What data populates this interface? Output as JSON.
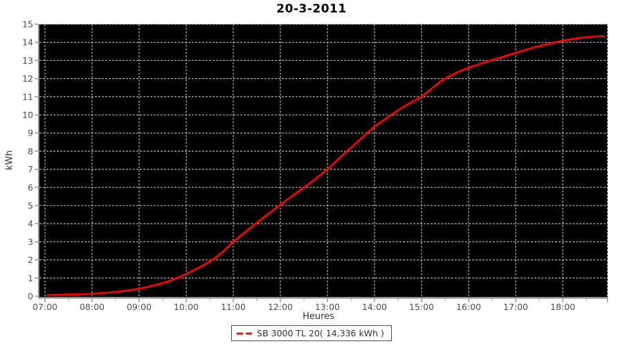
{
  "chart_data": {
    "type": "line",
    "title": "20-3-2011",
    "xlabel": "Heures",
    "ylabel": "kWh",
    "x_tick_labels": [
      "07:00",
      "08:00",
      "09:00",
      "10:00",
      "11:00",
      "12:00",
      "13:00",
      "14:00",
      "15:00",
      "16:00",
      "17:00",
      "18:00"
    ],
    "x_tick_hours": [
      7,
      8,
      9,
      10,
      11,
      12,
      13,
      14,
      15,
      16,
      17,
      18
    ],
    "x_range_hours": [
      6.88,
      18.95
    ],
    "y_ticks": [
      0,
      1,
      2,
      3,
      4,
      5,
      6,
      7,
      8,
      9,
      10,
      11,
      12,
      13,
      14,
      15
    ],
    "ylim": [
      0,
      15
    ],
    "grid": {
      "on": true,
      "color": "#cfcfcf",
      "dash": "3,2",
      "plot_background": "#000000"
    },
    "axis": {
      "line_color": "#8c8c8c",
      "tick_color": "#8c8c8c",
      "tick_label_color": "#4d4d4d"
    },
    "legend": {
      "position": "bottom-center",
      "border_color": "#4d4d4d",
      "entries": [
        {
          "label": "SB 3000 TL 20( 14,336 kWh )",
          "color": "#ff0000"
        }
      ]
    },
    "series": [
      {
        "name": "SB 3000 TL 20",
        "color": "#ff0000",
        "width": 2.8,
        "points": [
          [
            7.05,
            0.06
          ],
          [
            7.2,
            0.07
          ],
          [
            7.4,
            0.08
          ],
          [
            7.6,
            0.09
          ],
          [
            7.8,
            0.11
          ],
          [
            8.0,
            0.13
          ],
          [
            8.2,
            0.17
          ],
          [
            8.4,
            0.21
          ],
          [
            8.6,
            0.26
          ],
          [
            8.8,
            0.33
          ],
          [
            9.0,
            0.41
          ],
          [
            9.2,
            0.52
          ],
          [
            9.4,
            0.65
          ],
          [
            9.6,
            0.8
          ],
          [
            9.8,
            1.0
          ],
          [
            10.0,
            1.22
          ],
          [
            10.2,
            1.48
          ],
          [
            10.4,
            1.76
          ],
          [
            10.6,
            2.08
          ],
          [
            10.8,
            2.5
          ],
          [
            11.0,
            3.0
          ],
          [
            11.2,
            3.42
          ],
          [
            11.4,
            3.84
          ],
          [
            11.6,
            4.25
          ],
          [
            11.8,
            4.65
          ],
          [
            12.0,
            5.05
          ],
          [
            12.2,
            5.43
          ],
          [
            12.4,
            5.8
          ],
          [
            12.6,
            6.18
          ],
          [
            12.8,
            6.58
          ],
          [
            13.0,
            7.0
          ],
          [
            13.2,
            7.48
          ],
          [
            13.4,
            7.96
          ],
          [
            13.6,
            8.42
          ],
          [
            13.8,
            8.9
          ],
          [
            14.0,
            9.35
          ],
          [
            14.2,
            9.72
          ],
          [
            14.4,
            10.08
          ],
          [
            14.6,
            10.42
          ],
          [
            14.8,
            10.72
          ],
          [
            15.0,
            11.0
          ],
          [
            15.2,
            11.42
          ],
          [
            15.4,
            11.84
          ],
          [
            15.6,
            12.15
          ],
          [
            15.8,
            12.4
          ],
          [
            16.0,
            12.6
          ],
          [
            16.2,
            12.78
          ],
          [
            16.4,
            12.95
          ],
          [
            16.6,
            13.1
          ],
          [
            16.8,
            13.26
          ],
          [
            17.0,
            13.42
          ],
          [
            17.2,
            13.58
          ],
          [
            17.4,
            13.73
          ],
          [
            17.6,
            13.86
          ],
          [
            17.8,
            13.98
          ],
          [
            18.0,
            14.09
          ],
          [
            18.2,
            14.18
          ],
          [
            18.4,
            14.26
          ],
          [
            18.6,
            14.31
          ],
          [
            18.75,
            14.33
          ],
          [
            18.88,
            14.34
          ]
        ]
      }
    ]
  }
}
